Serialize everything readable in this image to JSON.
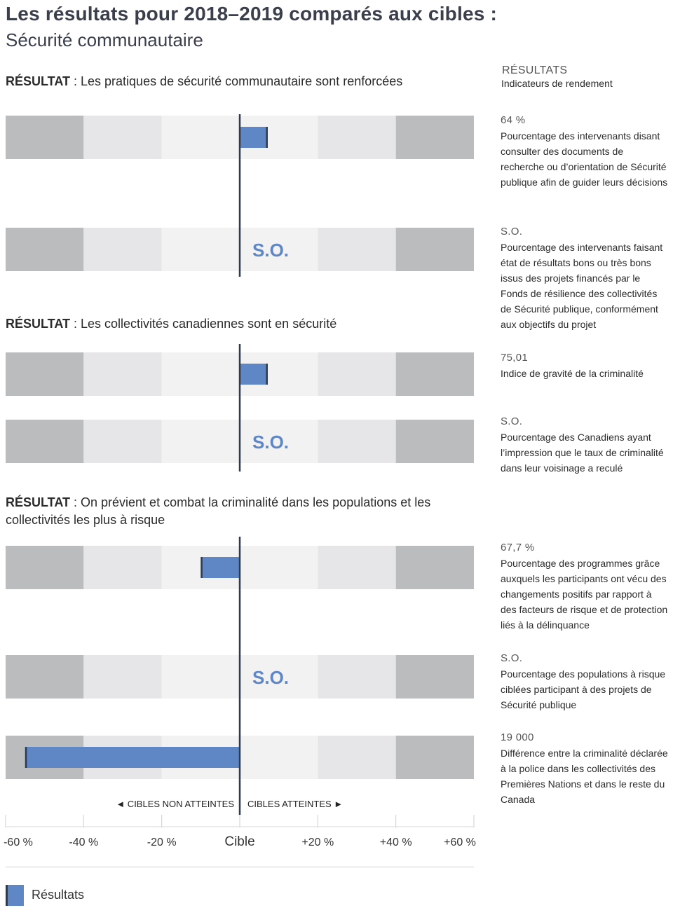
{
  "header": {
    "title": "Les résultats pour 2018–2019 comparés aux cibles :",
    "subtitle": "Sécurité communautaire"
  },
  "results_header": {
    "title": "RÉSULTATS",
    "subtitle": "Indicateurs de rendement"
  },
  "outcomes": [
    {
      "label": "RÉSULTAT",
      "text": " : Les pratiques de sécurité communautaire sont renforcées"
    },
    {
      "label": "RÉSULTAT",
      "text": " : Les collectivités canadiennes sont en sécurité"
    },
    {
      "label": "RÉSULTAT",
      "text": " : On prévient et combat la criminalité dans les populations et les collectivités les plus à risque"
    }
  ],
  "indicators": [
    {
      "value": "64 %",
      "text": "Pourcentage des intervenants disant consulter des documents de recherche ou d’orientation de Sécurité publique afin de guider leurs décisions"
    },
    {
      "value": "S.O.",
      "text": "Pourcentage des intervenants faisant état de résultats bons ou très bons issus des projets financés par le Fonds de résilience des collectivités de Sécurité publique, conformément aux objectifs du projet"
    },
    {
      "value": "75,01",
      "text": "Indice de gravité de la criminalité"
    },
    {
      "value": "S.O.",
      "text": "Pourcentage des Canadiens ayant l’impression que le taux de criminalité dans leur voisinage a reculé"
    },
    {
      "value": "67,7 %",
      "text": "Pourcentage des programmes grâce auxquels les participants ont vécu des changements positifs par rapport à des facteurs de risque et de protection liés à la délinquance"
    },
    {
      "value": "S.O.",
      "text": "Pourcentage des populations à risque ciblées participant à des projets de Sécurité publique"
    },
    {
      "value": "19 000",
      "text": "Différence entre la criminalité déclarée à la police dans les collectivités des Premières Nations et dans le reste du Canada"
    }
  ],
  "chart_data": {
    "type": "bar",
    "orientation": "horizontal",
    "xlim": [
      -60,
      60
    ],
    "x_ticks": [
      "-60 %",
      "-40 %",
      "-20 %",
      "Cible",
      "+20 %",
      "+40 %",
      "+60 %"
    ],
    "direction_labels": {
      "left": "◄ CIBLES NON ATTEINTES",
      "right": "CIBLES ATTEINTES ►"
    },
    "series": [
      {
        "name": "Résultats",
        "values": [
          7,
          null,
          7,
          null,
          -10,
          null,
          -55
        ]
      }
    ],
    "na_label": "S.O.",
    "colors": {
      "bar": "#5f86c5",
      "band_outer": "#bbbcbe",
      "band_mid": "#e6e6e8",
      "band_inner": "#f2f2f3",
      "axis": "#2f3a4a"
    }
  },
  "legend": {
    "label": "Résultats"
  }
}
